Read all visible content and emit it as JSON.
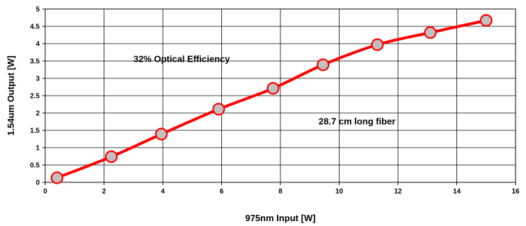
{
  "chart_data": {
    "type": "line",
    "title": "",
    "xlabel": "975nm Input [W]",
    "ylabel": "1.54um Output [W]",
    "xlim": [
      0,
      16
    ],
    "ylim": [
      0,
      5
    ],
    "x_ticks": [
      0,
      2,
      4,
      6,
      8,
      10,
      12,
      14,
      16
    ],
    "y_ticks": [
      0,
      0.5,
      1,
      1.5,
      2,
      2.5,
      3,
      3.5,
      4,
      4.5,
      5
    ],
    "x_tick_labels": [
      "0",
      "2",
      "4",
      "6",
      "8",
      "10",
      "12",
      "14",
      "16"
    ],
    "y_tick_labels": [
      "0",
      "0.5",
      "1",
      "1.5",
      "2",
      "2.5",
      "3",
      "3.5",
      "4",
      "4.5",
      "5"
    ],
    "grid": true,
    "legend": "none",
    "series": [
      {
        "color": "#ff0000",
        "marker_fill": "#c0c0c0",
        "x": [
          0.4,
          2.25,
          3.95,
          5.9,
          7.75,
          9.45,
          11.3,
          13.1,
          15.0
        ],
        "y": [
          0.13,
          0.74,
          1.39,
          2.11,
          2.71,
          3.39,
          3.97,
          4.32,
          4.67
        ]
      }
    ],
    "annotations": [
      {
        "text": "32% Optical Efficiency",
        "x": 3.0,
        "y": 3.55
      },
      {
        "text": "28.7 cm long fiber",
        "x": 9.3,
        "y": 1.75
      }
    ]
  }
}
